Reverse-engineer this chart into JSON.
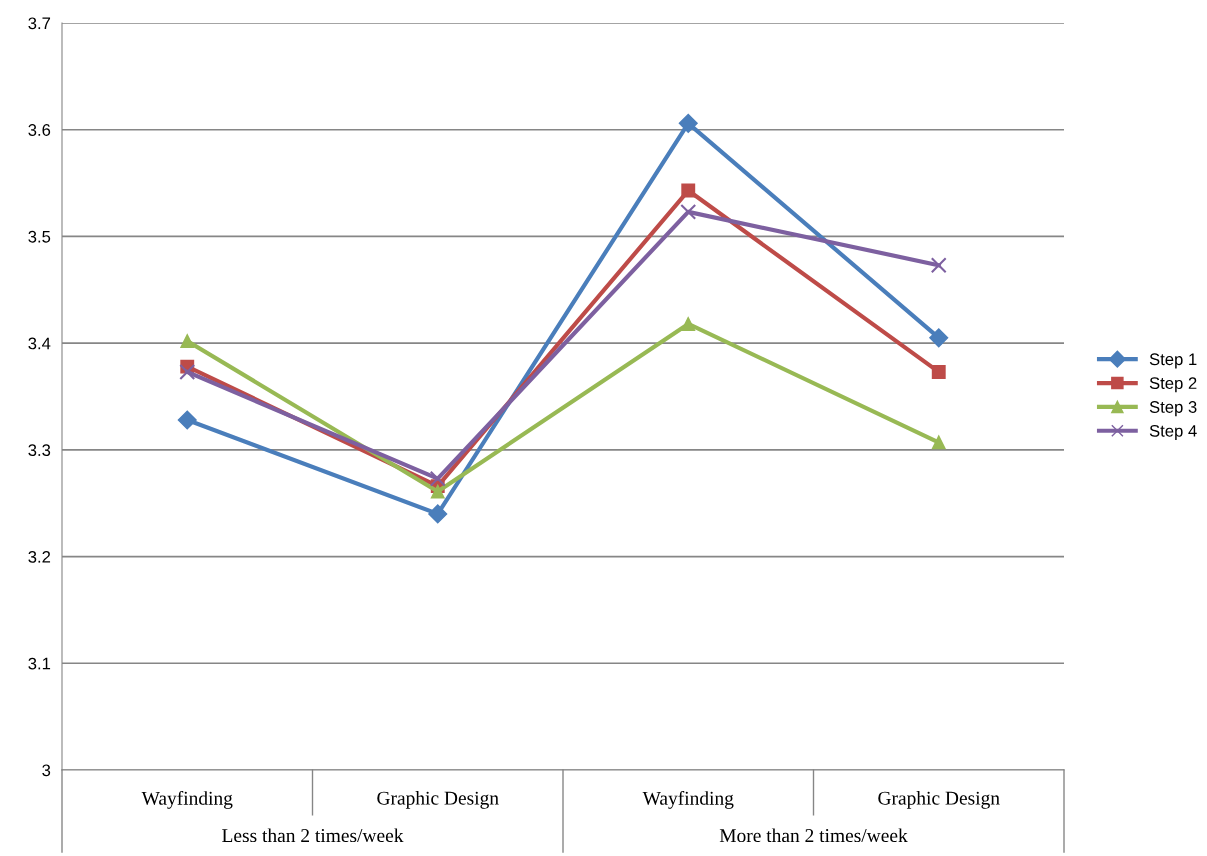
{
  "chart_data": {
    "type": "line",
    "categories": [
      "Wayfinding",
      "Graphic Design",
      "Wayfinding",
      "Graphic Design"
    ],
    "annotations": [
      "Less than 2 times/week",
      "More than 2 times/week"
    ],
    "series": [
      {
        "name": "Step 1",
        "color": "#4a7ebb",
        "marker": "diamond",
        "values": [
          3.328,
          3.24,
          3.606,
          3.405
        ]
      },
      {
        "name": "Step 2",
        "color": "#be4b48",
        "marker": "square",
        "values": [
          3.378,
          3.266,
          3.543,
          3.373
        ]
      },
      {
        "name": "Step 3",
        "color": "#98b954",
        "marker": "triangle",
        "values": [
          3.402,
          3.261,
          3.418,
          3.307
        ]
      },
      {
        "name": "Step 4",
        "color": "#7d60a0",
        "marker": "cross",
        "values": [
          3.373,
          3.273,
          3.523,
          3.473
        ]
      }
    ],
    "ylim": [
      3,
      3.7
    ],
    "yticks": [
      3,
      3.1,
      3.2,
      3.3,
      3.4,
      3.5,
      3.6,
      3.7
    ],
    "grid": "y",
    "legend": "right"
  }
}
